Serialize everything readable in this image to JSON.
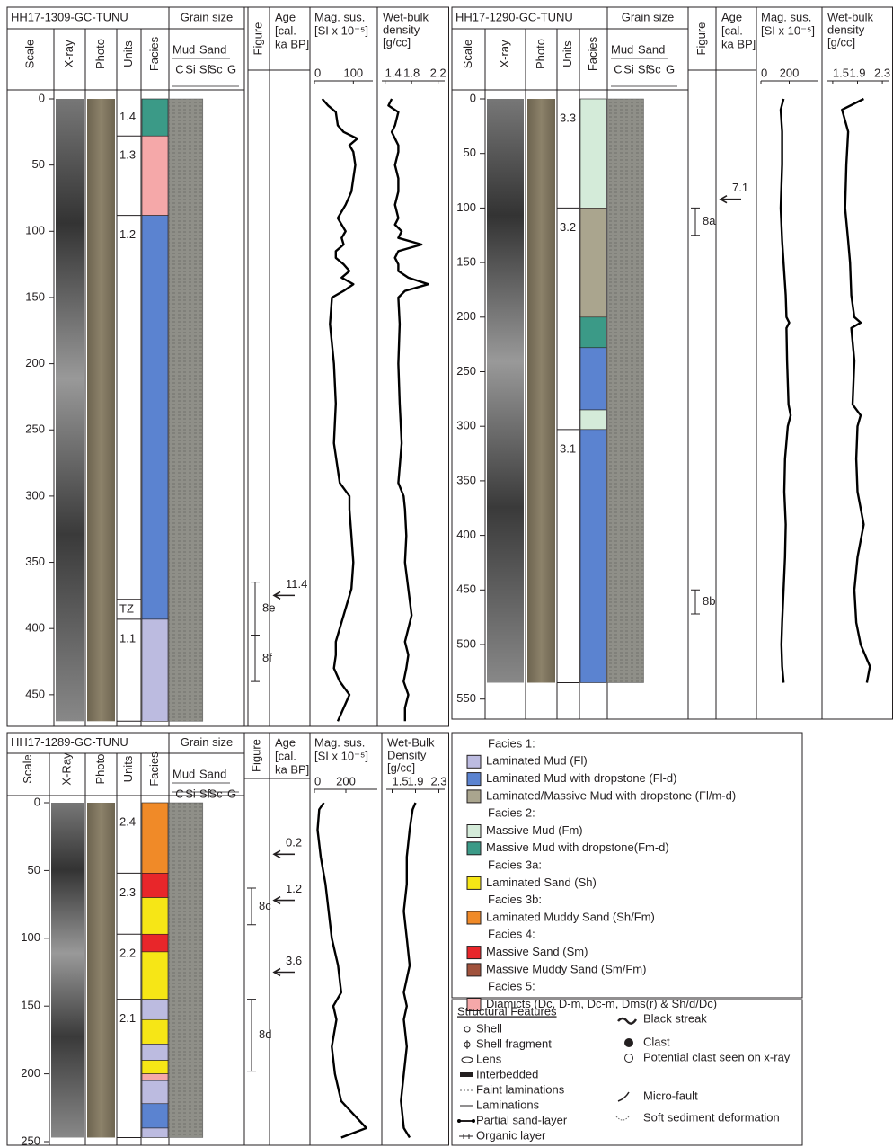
{
  "cores": [
    {
      "name": "HH17-1309-GC-TUNU",
      "headers": {
        "scale": "Scale",
        "xray": "X-ray",
        "photo": "Photo",
        "units": "Units",
        "facies": "Facies",
        "grain": "Grain size",
        "figure": "Figure",
        "age": [
          "Age",
          "[cal.",
          "ka BP]"
        ],
        "mag": [
          "Mag. sus.",
          "[SI x 10⁻⁵]"
        ],
        "dens": [
          "Wet-bulk",
          "density",
          "[g/cc]"
        ]
      },
      "grain_classes": {
        "groups": [
          "Mud",
          "Sand"
        ],
        "classes": [
          "C",
          "Si",
          "Sf",
          "Sc",
          "G"
        ]
      },
      "depth_ticks": [
        0,
        50,
        100,
        150,
        200,
        250,
        300,
        350,
        400,
        450
      ],
      "units": [
        {
          "label": "1.4",
          "top": 0,
          "bottom": 28
        },
        {
          "label": "1.3",
          "top": 28,
          "bottom": 88
        },
        {
          "label": "1.2",
          "top": 88,
          "bottom": 378
        },
        {
          "label": "TZ",
          "top": 378,
          "bottom": 393
        },
        {
          "label": "1.1",
          "top": 393,
          "bottom": 470
        }
      ],
      "facies": [
        {
          "top": 0,
          "bottom": 28,
          "color": "#3b9a87"
        },
        {
          "top": 28,
          "bottom": 88,
          "color": "#f5a8a9"
        },
        {
          "top": 88,
          "bottom": 393,
          "color": "#5b83d0"
        },
        {
          "top": 393,
          "bottom": 470,
          "color": "#bcbbe0"
        }
      ],
      "ages": [
        {
          "label": "11.4",
          "depth": 375
        }
      ],
      "figures": [
        {
          "label": "8e",
          "top": 365,
          "bottom": 405
        },
        {
          "label": "8f",
          "top": 405,
          "bottom": 440
        }
      ],
      "mag": {
        "lim": [
          0,
          150
        ],
        "ticks": [
          0,
          100
        ],
        "depth": [
          0,
          5,
          10,
          20,
          25,
          30,
          35,
          40,
          50,
          60,
          70,
          80,
          90,
          95,
          100,
          105,
          110,
          115,
          120,
          125,
          130,
          135,
          140,
          145,
          150,
          170,
          200,
          230,
          260,
          290,
          300,
          310,
          330,
          350,
          370,
          390,
          410,
          420,
          430,
          440,
          450,
          460,
          470
        ],
        "values": [
          20,
          35,
          55,
          60,
          75,
          110,
          90,
          100,
          105,
          100,
          95,
          80,
          60,
          70,
          80,
          70,
          75,
          55,
          55,
          75,
          90,
          70,
          100,
          75,
          45,
          40,
          50,
          55,
          50,
          65,
          90,
          90,
          95,
          100,
          95,
          75,
          55,
          55,
          50,
          65,
          90,
          75,
          60
        ]
      },
      "dens": {
        "lim": [
          1.35,
          2.3
        ],
        "ticks": [
          1.4,
          1.8,
          2.2
        ],
        "depth": [
          0,
          5,
          10,
          20,
          25,
          30,
          35,
          40,
          50,
          60,
          70,
          80,
          90,
          95,
          100,
          105,
          110,
          115,
          120,
          125,
          130,
          135,
          140,
          145,
          150,
          170,
          200,
          230,
          260,
          290,
          300,
          310,
          330,
          350,
          370,
          390,
          410,
          420,
          430,
          440,
          450,
          460,
          470
        ],
        "values": [
          1.5,
          1.45,
          1.6,
          1.55,
          1.5,
          1.55,
          1.6,
          1.6,
          1.55,
          1.6,
          1.6,
          1.55,
          1.6,
          1.55,
          1.65,
          1.6,
          1.95,
          1.6,
          1.55,
          1.6,
          1.6,
          1.75,
          2.05,
          1.7,
          1.6,
          1.62,
          1.6,
          1.62,
          1.65,
          1.6,
          1.68,
          1.7,
          1.72,
          1.7,
          1.75,
          1.8,
          1.7,
          1.75,
          1.72,
          1.68,
          1.75,
          1.7,
          1.7
        ]
      }
    },
    {
      "name": "HH17-1290-GC-TUNU",
      "headers": {
        "scale": "Scale",
        "xray": "X-ray",
        "photo": "Photo",
        "units": "Units",
        "facies": "Facies",
        "grain": "Grain size",
        "figure": "Figure",
        "age": [
          "Age",
          "[cal.",
          "ka BP]"
        ],
        "mag": [
          "Mag. sus.",
          "[SI x 10⁻⁵]"
        ],
        "dens": [
          "Wet-bulk",
          "density",
          "[g/cc]"
        ]
      },
      "grain_classes": {
        "groups": [
          "Mud",
          "Sand"
        ],
        "classes": [
          "C",
          "Si",
          "Sf",
          "Sc",
          "G"
        ]
      },
      "depth_ticks": [
        0,
        50,
        100,
        150,
        200,
        250,
        300,
        350,
        400,
        450,
        500,
        550
      ],
      "units": [
        {
          "label": "3.3",
          "top": 0,
          "bottom": 100
        },
        {
          "label": "3.2",
          "top": 100,
          "bottom": 303
        },
        {
          "label": "3.1",
          "top": 303,
          "bottom": 535
        }
      ],
      "facies": [
        {
          "top": 0,
          "bottom": 100,
          "color": "#d4ebd9"
        },
        {
          "top": 100,
          "bottom": 200,
          "color": "#aaa58e"
        },
        {
          "top": 200,
          "bottom": 228,
          "color": "#3b9a87"
        },
        {
          "top": 228,
          "bottom": 285,
          "color": "#5b83d0"
        },
        {
          "top": 285,
          "bottom": 303,
          "color": "#d4ebd9"
        },
        {
          "top": 303,
          "bottom": 535,
          "color": "#5b83d0"
        }
      ],
      "ages": [
        {
          "label": "7.1",
          "depth": 92
        }
      ],
      "figures": [
        {
          "label": "8a",
          "top": 100,
          "bottom": 125
        },
        {
          "label": "8b",
          "top": 450,
          "bottom": 472
        }
      ],
      "mag": {
        "lim": [
          0,
          400
        ],
        "ticks": [
          0,
          200
        ],
        "depth": [
          0,
          10,
          30,
          60,
          100,
          130,
          150,
          180,
          200,
          205,
          210,
          240,
          280,
          290,
          300,
          330,
          360,
          390,
          420,
          450,
          480,
          500,
          520,
          535
        ],
        "values": [
          160,
          140,
          150,
          150,
          140,
          150,
          160,
          175,
          180,
          200,
          180,
          185,
          195,
          210,
          190,
          170,
          165,
          175,
          170,
          160,
          150,
          145,
          150,
          160
        ]
      },
      "dens": {
        "lim": [
          1.4,
          2.4
        ],
        "ticks": [
          1.5,
          1.9,
          2.3
        ],
        "depth": [
          0,
          10,
          30,
          60,
          100,
          130,
          150,
          180,
          200,
          205,
          210,
          240,
          280,
          290,
          300,
          330,
          360,
          390,
          420,
          450,
          480,
          500,
          520,
          535
        ],
        "values": [
          2.0,
          1.65,
          1.75,
          1.72,
          1.7,
          1.75,
          1.78,
          1.8,
          1.85,
          1.95,
          1.8,
          1.85,
          1.82,
          1.95,
          1.9,
          1.88,
          1.9,
          2.0,
          1.9,
          1.85,
          1.88,
          1.95,
          2.1,
          2.05
        ]
      }
    },
    {
      "name": "HH17-1289-GC-TUNU",
      "headers": {
        "scale": "Scale",
        "xray": "X-Ray",
        "photo": "Photo",
        "units": "Units",
        "facies": "Facies",
        "grain": "Grain size",
        "figure": "Figure",
        "age": [
          "Age",
          "[cal.",
          "ka BP]"
        ],
        "mag": [
          "Mag. sus.",
          "[SI x 10⁻⁵]"
        ],
        "dens": [
          "Wet-Bulk",
          "Density",
          "[g/cc]"
        ]
      },
      "grain_classes": {
        "groups": [
          "Mud",
          "Sand"
        ],
        "classes": [
          "C",
          "Si",
          "Sf",
          "Sc",
          "G"
        ]
      },
      "depth_ticks": [
        0,
        50,
        100,
        150,
        200,
        250
      ],
      "units": [
        {
          "label": "2.4",
          "top": 0,
          "bottom": 52
        },
        {
          "label": "2.3",
          "top": 52,
          "bottom": 97
        },
        {
          "label": "2.2",
          "top": 97,
          "bottom": 145
        },
        {
          "label": "2.1",
          "top": 145,
          "bottom": 247
        }
      ],
      "facies": [
        {
          "top": 0,
          "bottom": 52,
          "color": "#f08a28"
        },
        {
          "top": 52,
          "bottom": 70,
          "color": "#e8262a"
        },
        {
          "top": 70,
          "bottom": 97,
          "color": "#f6e616"
        },
        {
          "top": 97,
          "bottom": 110,
          "color": "#e8262a"
        },
        {
          "top": 110,
          "bottom": 145,
          "color": "#f6e616"
        },
        {
          "top": 145,
          "bottom": 160,
          "color": "#bcbbe0"
        },
        {
          "top": 160,
          "bottom": 178,
          "color": "#f6e616"
        },
        {
          "top": 178,
          "bottom": 190,
          "color": "#bcbbe0"
        },
        {
          "top": 190,
          "bottom": 200,
          "color": "#f6e616"
        },
        {
          "top": 200,
          "bottom": 205,
          "color": "#f5a8a9"
        },
        {
          "top": 205,
          "bottom": 222,
          "color": "#bcbbe0"
        },
        {
          "top": 222,
          "bottom": 240,
          "color": "#5b83d0"
        },
        {
          "top": 240,
          "bottom": 247,
          "color": "#bcbbe0"
        }
      ],
      "ages": [
        {
          "label": "0.2",
          "depth": 38
        },
        {
          "label": "1.2",
          "depth": 72
        },
        {
          "label": "3.6",
          "depth": 125
        }
      ],
      "figures": [
        {
          "label": "8c",
          "top": 63,
          "bottom": 90
        },
        {
          "label": "8d",
          "top": 145,
          "bottom": 198
        }
      ],
      "mag": {
        "lim": [
          0,
          400
        ],
        "ticks": [
          0,
          200
        ],
        "depth": [
          0,
          5,
          20,
          40,
          60,
          80,
          100,
          120,
          140,
          150,
          160,
          180,
          200,
          220,
          240,
          247
        ],
        "values": [
          60,
          30,
          20,
          40,
          70,
          90,
          110,
          150,
          170,
          120,
          140,
          110,
          130,
          170,
          330,
          170
        ]
      },
      "dens": {
        "lim": [
          1.4,
          2.4
        ],
        "ticks": [
          1.5,
          1.9,
          2.3
        ],
        "depth": [
          0,
          5,
          20,
          40,
          60,
          80,
          100,
          120,
          140,
          150,
          160,
          180,
          200,
          220,
          240,
          247
        ],
        "values": [
          1.9,
          1.85,
          1.8,
          1.75,
          1.75,
          1.7,
          1.75,
          1.8,
          1.7,
          1.75,
          1.7,
          1.75,
          1.7,
          1.65,
          1.7,
          1.8
        ]
      }
    }
  ],
  "legend": {
    "facies_groups": [
      {
        "title": "Facies 1:",
        "items": [
          {
            "label": "Laminated Mud (Fl)",
            "color": "#bcbbe0"
          },
          {
            "label": "Laminated Mud with dropstone (Fl-d)",
            "color": "#5b83d0"
          },
          {
            "label": "Laminated/Massive Mud with dropstone (Fl/m-d)",
            "color": "#aaa58e"
          }
        ]
      },
      {
        "title": "Facies 2:",
        "items": [
          {
            "label": "Massive Mud (Fm)",
            "color": "#d4ebd9"
          },
          {
            "label": "Massive Mud with dropstone(Fm-d)",
            "color": "#3b9a87"
          }
        ]
      },
      {
        "title": "Facies 3a:",
        "items": [
          {
            "label": "Laminated Sand (Sh)",
            "color": "#f6e616"
          }
        ]
      },
      {
        "title": "Facies 3b:",
        "items": [
          {
            "label": "Laminated Muddy Sand (Sh/Fm)",
            "color": "#f08a28"
          }
        ]
      },
      {
        "title": "Facies 4:",
        "items": [
          {
            "label": "Massive Sand (Sm)",
            "color": "#e8262a"
          },
          {
            "label": "Massive Muddy Sand (Sm/Fm)",
            "color": "#a0523c"
          }
        ]
      },
      {
        "title": "Facies 5:",
        "items": [
          {
            "label": "Diamicts (Dc, D-m, Dc-m, Dms(r) & Sh/d/Dc)",
            "color": "#f5a8a9"
          }
        ]
      }
    ],
    "structural": {
      "title": "Structural Features",
      "items": [
        "Shell",
        "Shell fragment",
        "Lens",
        "Interbedded",
        "Faint laminations",
        "Laminations",
        "Partial sand-layer",
        "Organic layer",
        "Black streak",
        "Clast",
        "Potential clast seen on x-ray",
        "Micro-fault",
        "Soft sediment deformation"
      ]
    }
  }
}
